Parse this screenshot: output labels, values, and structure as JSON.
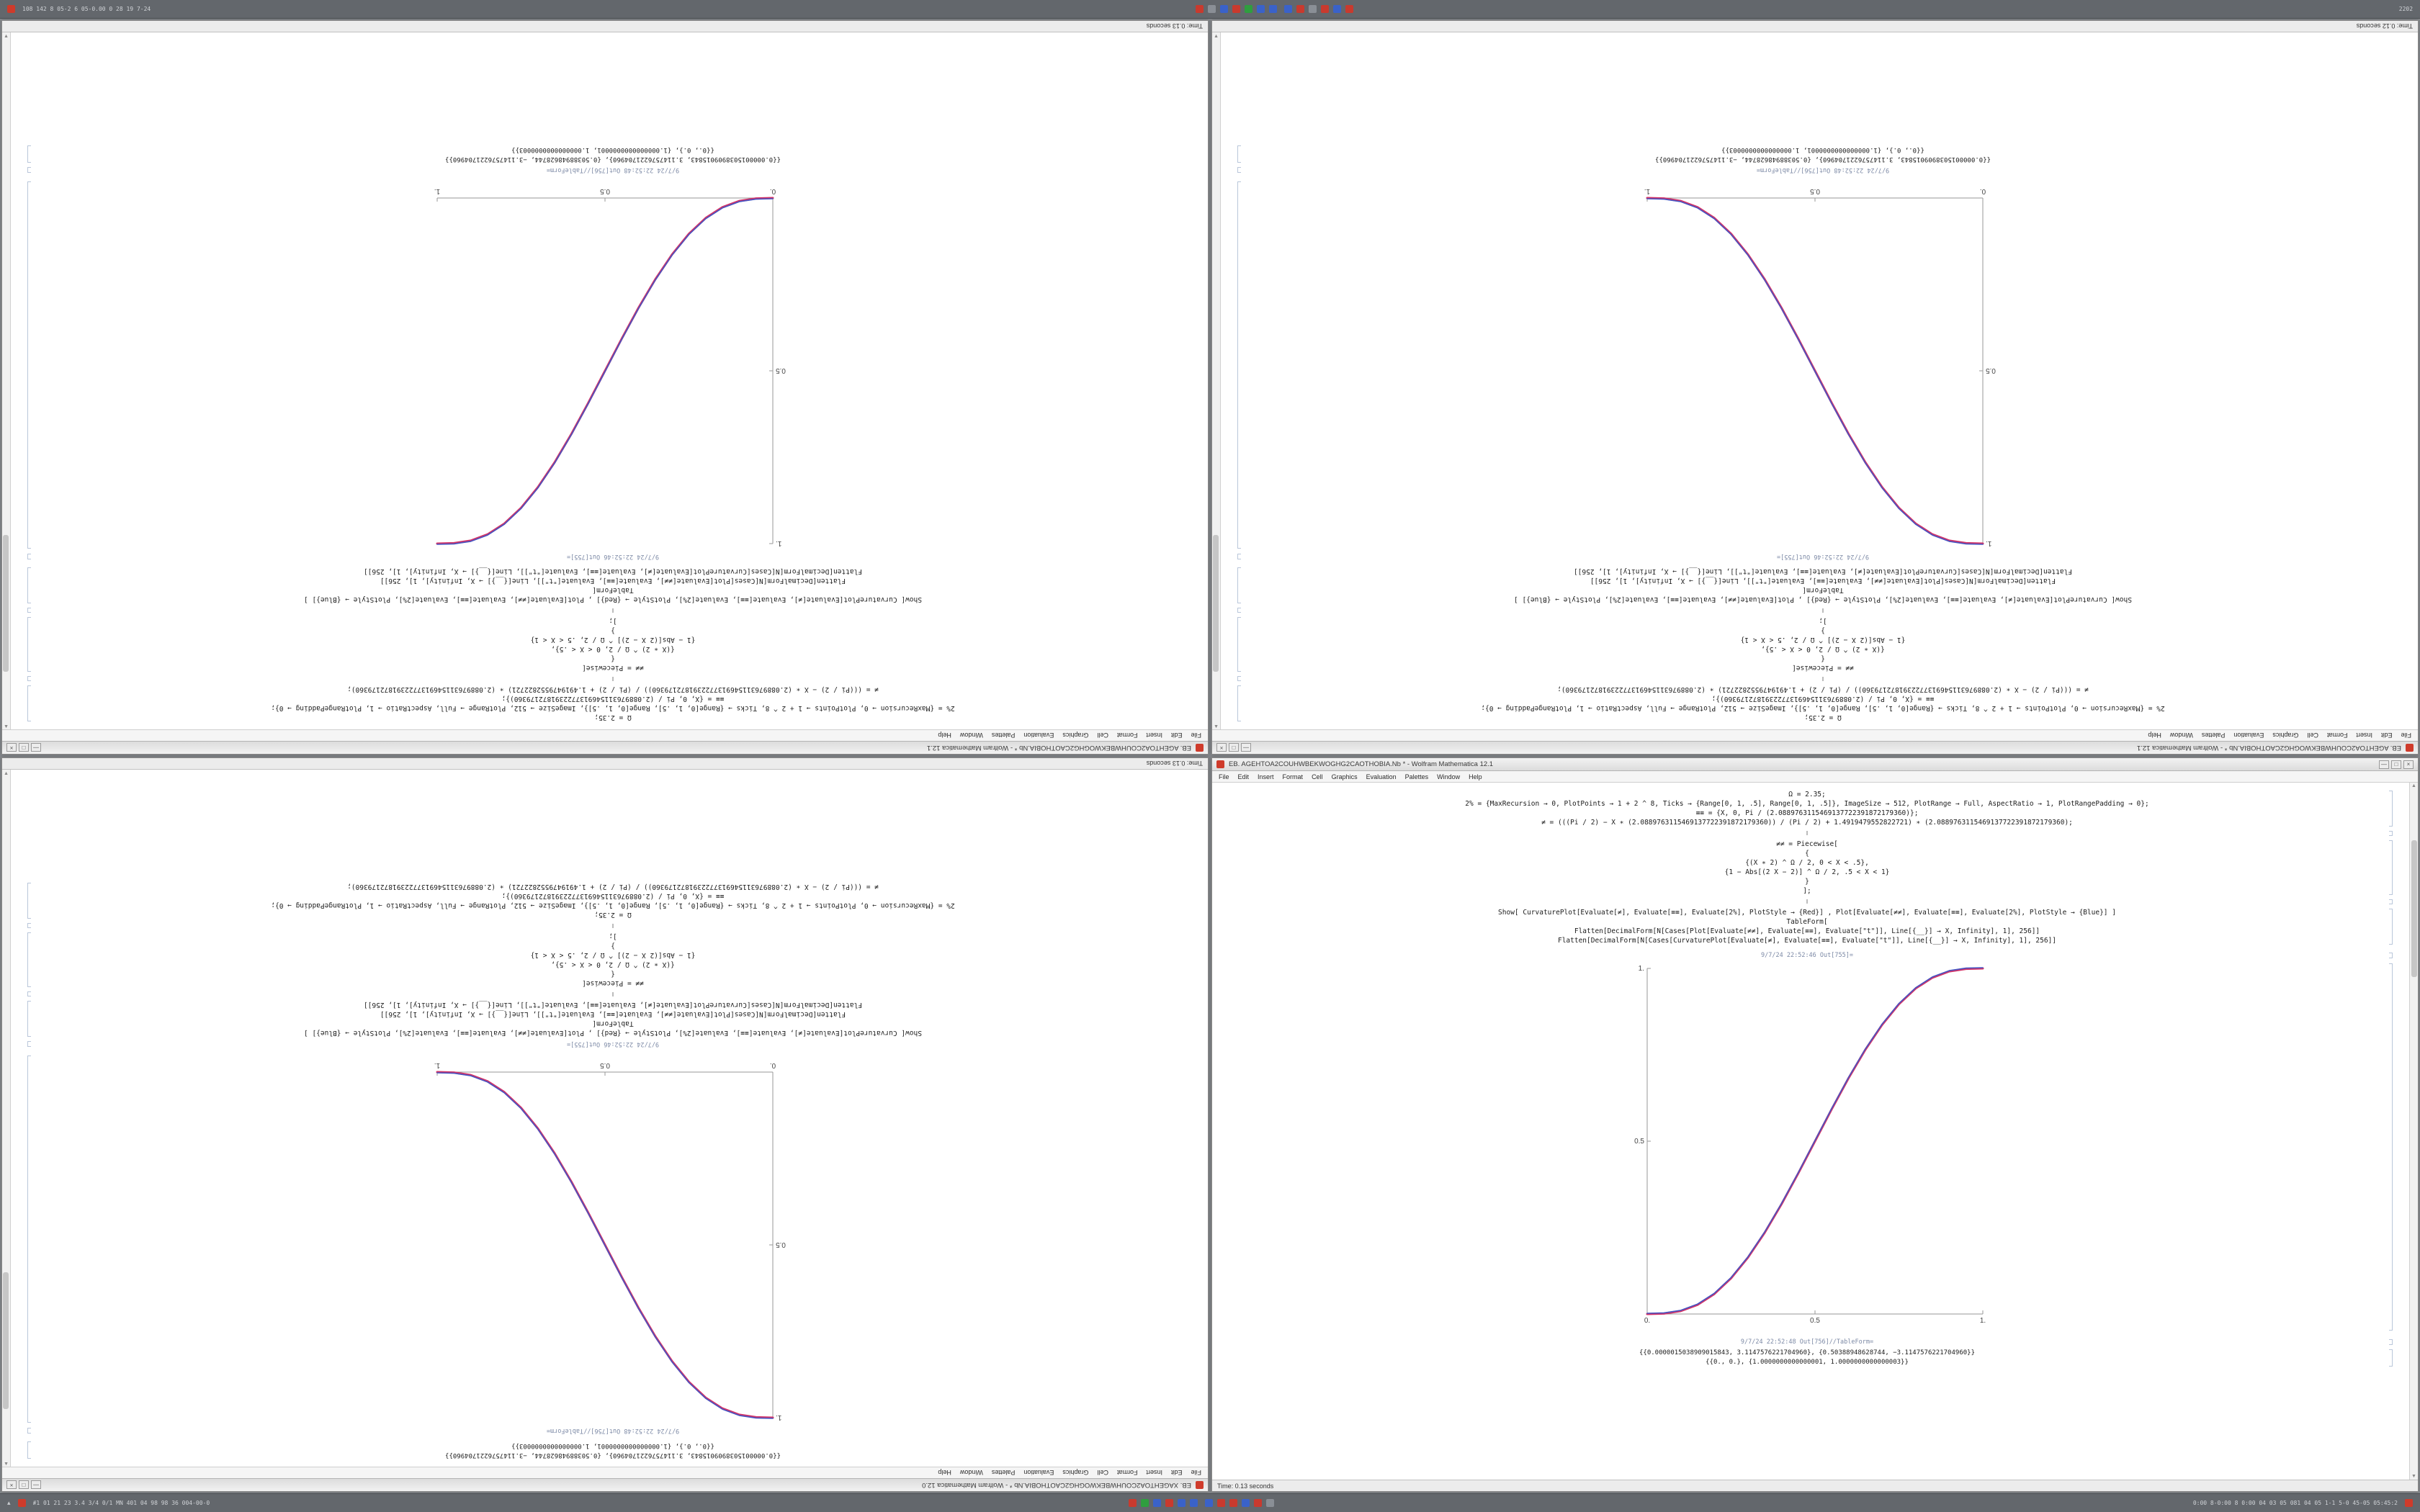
{
  "top_taskbar": {
    "left_text": "108 142 8 05-2 6 05-0.00 0 28 19 7-24",
    "right_text": "2202",
    "tray_group_a": [
      "#c93a2e",
      "#8a8f96",
      "#3a62c9",
      "#c93a2e",
      "#2f9e3f",
      "#3a62c9",
      "#3a62c9"
    ],
    "tray_group_b": [
      "#3a62c9",
      "#c93a2e",
      "#8a8f96",
      "#c93a2e",
      "#3a62c9",
      "#c93a2e"
    ]
  },
  "bottom_taskbar": {
    "left_text": "#1 01 21 23 3.4 3/4 0/1 MN 401 04 98 98 36 004-00-0",
    "right_text": "0:00 8-0:00 8 0:00 04 03 05 081 04 05 1-1 5-0 45-05 05:45:2",
    "tray_group_a": [
      "#c93a2e",
      "#2f9e3f",
      "#3a62c9",
      "#c93a2e",
      "#3a62c9",
      "#3a62c9"
    ],
    "tray_group_b": [
      "#3a62c9",
      "#c93a2e",
      "#c93a2e",
      "#3a62c9",
      "#c93a2e",
      "#8a8f96"
    ]
  },
  "notebook": {
    "menu": [
      "File",
      "Edit",
      "Insert",
      "Format",
      "Cell",
      "Graphics",
      "Evaluation",
      "Palettes",
      "Window",
      "Help"
    ],
    "window_controls": [
      "—",
      "□",
      "×"
    ],
    "cells": [
      {
        "type": "code",
        "lines": [
          "Ω = 2.35;",
          "2% = {MaxRecursion → 0, PlotPoints → 1 + 2 ^ 8, Ticks → {Range[0, 1, .5], Range[0, 1, .5]}, ImageSize → 512, PlotRange → Full, AspectRatio → 1, PlotRangePadding → 0};",
          "≡≡ = {X, 0, Pi / (2.0889763115469137722391872179360)};",
          "≠ = (((Pi / 2) − X ∗ (2.0889763115469137722391872179360)) / (Pi / 2) + 1.4919479552822721) ∗ (2.0889763115469137722391872179360);"
        ]
      },
      {
        "type": "sep",
        "glyph": "‖"
      },
      {
        "type": "code",
        "lines": [
          "≠≠ = Piecewise[",
          "{",
          "{(X ∗ 2) ^ Ω / 2, 0 < X < .5},",
          "{1 − Abs[(2 X − 2)] ^ Ω / 2, .5 < X < 1}",
          "}",
          "];"
        ]
      },
      {
        "type": "sep",
        "glyph": "‖"
      },
      {
        "type": "code",
        "lines": [
          "Show[  CurvaturePlot[Evaluate[≠], Evaluate[≡≡], Evaluate[2%], PlotStyle → {Red}] ,  Plot[Evaluate[≠≠], Evaluate[≡≡], Evaluate[2%], PlotStyle → {Blue}] ]",
          "TableForm[",
          "Flatten[DecimalForm[N[Cases[Plot[Evaluate[≠≠], Evaluate[≡≡], Evaluate[\"t\"]], Line[{__}] → X, Infinity], 1], 256]]",
          "Flatten[DecimalForm[N[Cases[CurvaturePlot[Evaluate[≠], Evaluate[≡≡], Evaluate[\"t\"]], Line[{__}] → X, Infinity], 1], 256]]"
        ]
      },
      {
        "type": "label",
        "text": "9/7/24 22:52:46 Out[755]="
      },
      {
        "type": "plot"
      },
      {
        "type": "label",
        "text": "9/7/24 22:52:48 Out[756]//TableForm="
      },
      {
        "type": "table",
        "lines": [
          "{{0.0000015038909015843, 3.1147576221704960}, {0.50388948628744, −3.1147576221704960}}",
          "{{0., 0.}, {1.0000000000000001, 1.0000000000000003}}"
        ]
      }
    ]
  },
  "windows": [
    {
      "slot": "top-left",
      "title": "EB. AGEHTOA2COUHWBEKWOGHG2CAOTHOBIA.Nb * - Wolfram Mathematica 12.1",
      "status": "Time: 0.13 seconds"
    },
    {
      "slot": "top-right",
      "title": "EB. AGEHTOA2COUHWBEKWOGHG2CAOTHOBIA.Nb * - Wolfram Mathematica 12.1",
      "status": "Time: 0.12 seconds"
    },
    {
      "slot": "bottom-left",
      "title": "EB. XAGEHTOA2COUHWBEKWOGHG2CAOTHOBIA.Nb * - Wolfram Mathematica 12.0",
      "status": "Time: 0.13 seconds"
    },
    {
      "slot": "bottom-right",
      "title": "EB. AGEHTOA2COUHWBEKWOGHG2CAOTHOBIA.Nb * - Wolfram Mathematica 12.1",
      "status": "Time: 0.13 seconds"
    }
  ],
  "chart_data": [
    {
      "type": "line",
      "position": "top-left",
      "title": "9/7/24 22:52:46 Out[755]=",
      "xlabel": "",
      "ylabel": "",
      "xlim": [
        0,
        1
      ],
      "ylim": [
        0,
        1
      ],
      "grid": false,
      "legend": "none",
      "xticks": [
        "0.",
        "0.5",
        "1."
      ],
      "xtick_values": [
        0,
        0.5,
        1
      ],
      "yticks": [
        "0.5",
        "1."
      ],
      "ytick_values": [
        0.5,
        1
      ],
      "x": [
        0,
        0.05,
        0.1,
        0.15,
        0.2,
        0.25,
        0.3,
        0.35,
        0.4,
        0.45,
        0.5,
        0.55,
        0.6,
        0.65,
        0.7,
        0.75,
        0.8,
        0.85,
        0.9,
        0.95,
        1
      ],
      "series": [
        {
          "name": "CurvaturePlot (red)",
          "color": "#d23468",
          "values": [
            0,
            0.0012,
            0.0086,
            0.0266,
            0.0579,
            0.1035,
            0.1631,
            0.2352,
            0.3174,
            0.4069,
            0.5,
            0.5931,
            0.6826,
            0.7648,
            0.8369,
            0.8965,
            0.9421,
            0.9734,
            0.9914,
            0.9988,
            1
          ]
        },
        {
          "name": "Plot (blue)",
          "color": "#4553c2",
          "values": [
            0,
            0.0012,
            0.0086,
            0.0266,
            0.0579,
            0.1035,
            0.1631,
            0.2352,
            0.3174,
            0.4069,
            0.5,
            0.5931,
            0.6826,
            0.7648,
            0.8369,
            0.8965,
            0.9421,
            0.9734,
            0.9914,
            0.9988,
            1
          ]
        }
      ]
    },
    {
      "type": "line",
      "position": "top-right",
      "title": "9/7/24 22:52:46 Out[755]=",
      "xlabel": "",
      "ylabel": "",
      "xlim": [
        0,
        1
      ],
      "ylim": [
        0,
        1
      ],
      "grid": false,
      "legend": "none",
      "xticks": [
        "0.",
        "0.5",
        "1."
      ],
      "xtick_values": [
        0,
        0.5,
        1
      ],
      "yticks": [
        "0.5",
        "1."
      ],
      "ytick_values": [
        0.5,
        1
      ],
      "x": [
        0,
        0.05,
        0.1,
        0.15,
        0.2,
        0.25,
        0.3,
        0.35,
        0.4,
        0.45,
        0.5,
        0.55,
        0.6,
        0.65,
        0.7,
        0.75,
        0.8,
        0.85,
        0.9,
        0.95,
        1
      ],
      "series": [
        {
          "name": "CurvaturePlot (red)",
          "color": "#d23468",
          "values": [
            1,
            0.9988,
            0.9914,
            0.9734,
            0.9421,
            0.8965,
            0.8369,
            0.7648,
            0.6826,
            0.5931,
            0.5,
            0.4069,
            0.3174,
            0.2352,
            0.1631,
            0.1035,
            0.0579,
            0.0266,
            0.0086,
            0.0012,
            0
          ]
        },
        {
          "name": "Plot (blue)",
          "color": "#4553c2",
          "values": [
            1,
            0.9988,
            0.9914,
            0.9734,
            0.9421,
            0.8965,
            0.8369,
            0.7648,
            0.6826,
            0.5931,
            0.5,
            0.4069,
            0.3174,
            0.2352,
            0.1631,
            0.1035,
            0.0579,
            0.0266,
            0.0086,
            0.0012,
            0
          ]
        }
      ]
    },
    {
      "type": "line",
      "position": "bottom-left",
      "title": "9/7/24 22:52:46 Out[755]=",
      "xlabel": "",
      "ylabel": "",
      "xlim": [
        0,
        1
      ],
      "ylim": [
        0,
        1
      ],
      "grid": false,
      "legend": "none",
      "xticks": [
        "0.",
        "0.5",
        "1."
      ],
      "xtick_values": [
        0,
        0.5,
        1
      ],
      "yticks": [
        "0.5",
        "1."
      ],
      "ytick_values": [
        0.5,
        1
      ],
      "x": [
        0,
        0.05,
        0.1,
        0.15,
        0.2,
        0.25,
        0.3,
        0.35,
        0.4,
        0.45,
        0.5,
        0.55,
        0.6,
        0.65,
        0.7,
        0.75,
        0.8,
        0.85,
        0.9,
        0.95,
        1
      ],
      "series": [
        {
          "name": "CurvaturePlot (red)",
          "color": "#d23468",
          "values": [
            1,
            0.9988,
            0.9914,
            0.9734,
            0.9421,
            0.8965,
            0.8369,
            0.7648,
            0.6826,
            0.5931,
            0.5,
            0.4069,
            0.3174,
            0.2352,
            0.1631,
            0.1035,
            0.0579,
            0.0266,
            0.0086,
            0.0012,
            0
          ]
        },
        {
          "name": "Plot (blue)",
          "color": "#4553c2",
          "values": [
            1,
            0.9988,
            0.9914,
            0.9734,
            0.9421,
            0.8965,
            0.8369,
            0.7648,
            0.6826,
            0.5931,
            0.5,
            0.4069,
            0.3174,
            0.2352,
            0.1631,
            0.1035,
            0.0579,
            0.0266,
            0.0086,
            0.0012,
            0
          ]
        }
      ]
    },
    {
      "type": "line",
      "position": "bottom-right",
      "title": "9/7/24 22:52:46 Out[755]=",
      "xlabel": "",
      "ylabel": "",
      "xlim": [
        0,
        1
      ],
      "ylim": [
        0,
        1
      ],
      "grid": false,
      "legend": "none",
      "xticks": [
        "0.",
        "0.5",
        "1."
      ],
      "xtick_values": [
        0,
        0.5,
        1
      ],
      "yticks": [
        "0.5",
        "1."
      ],
      "ytick_values": [
        0.5,
        1
      ],
      "x": [
        0,
        0.05,
        0.1,
        0.15,
        0.2,
        0.25,
        0.3,
        0.35,
        0.4,
        0.45,
        0.5,
        0.55,
        0.6,
        0.65,
        0.7,
        0.75,
        0.8,
        0.85,
        0.9,
        0.95,
        1
      ],
      "series": [
        {
          "name": "CurvaturePlot (red)",
          "color": "#d23468",
          "values": [
            0,
            0.0012,
            0.0086,
            0.0266,
            0.0579,
            0.1035,
            0.1631,
            0.2352,
            0.3174,
            0.4069,
            0.5,
            0.5931,
            0.6826,
            0.7648,
            0.8369,
            0.8965,
            0.9421,
            0.9734,
            0.9914,
            0.9988,
            1
          ]
        },
        {
          "name": "Plot (blue)",
          "color": "#4553c2",
          "values": [
            0,
            0.0012,
            0.0086,
            0.0266,
            0.0579,
            0.1035,
            0.1631,
            0.2352,
            0.3174,
            0.4069,
            0.5,
            0.5931,
            0.6826,
            0.7648,
            0.8369,
            0.8965,
            0.9421,
            0.9734,
            0.9914,
            0.9988,
            1
          ]
        }
      ]
    }
  ]
}
